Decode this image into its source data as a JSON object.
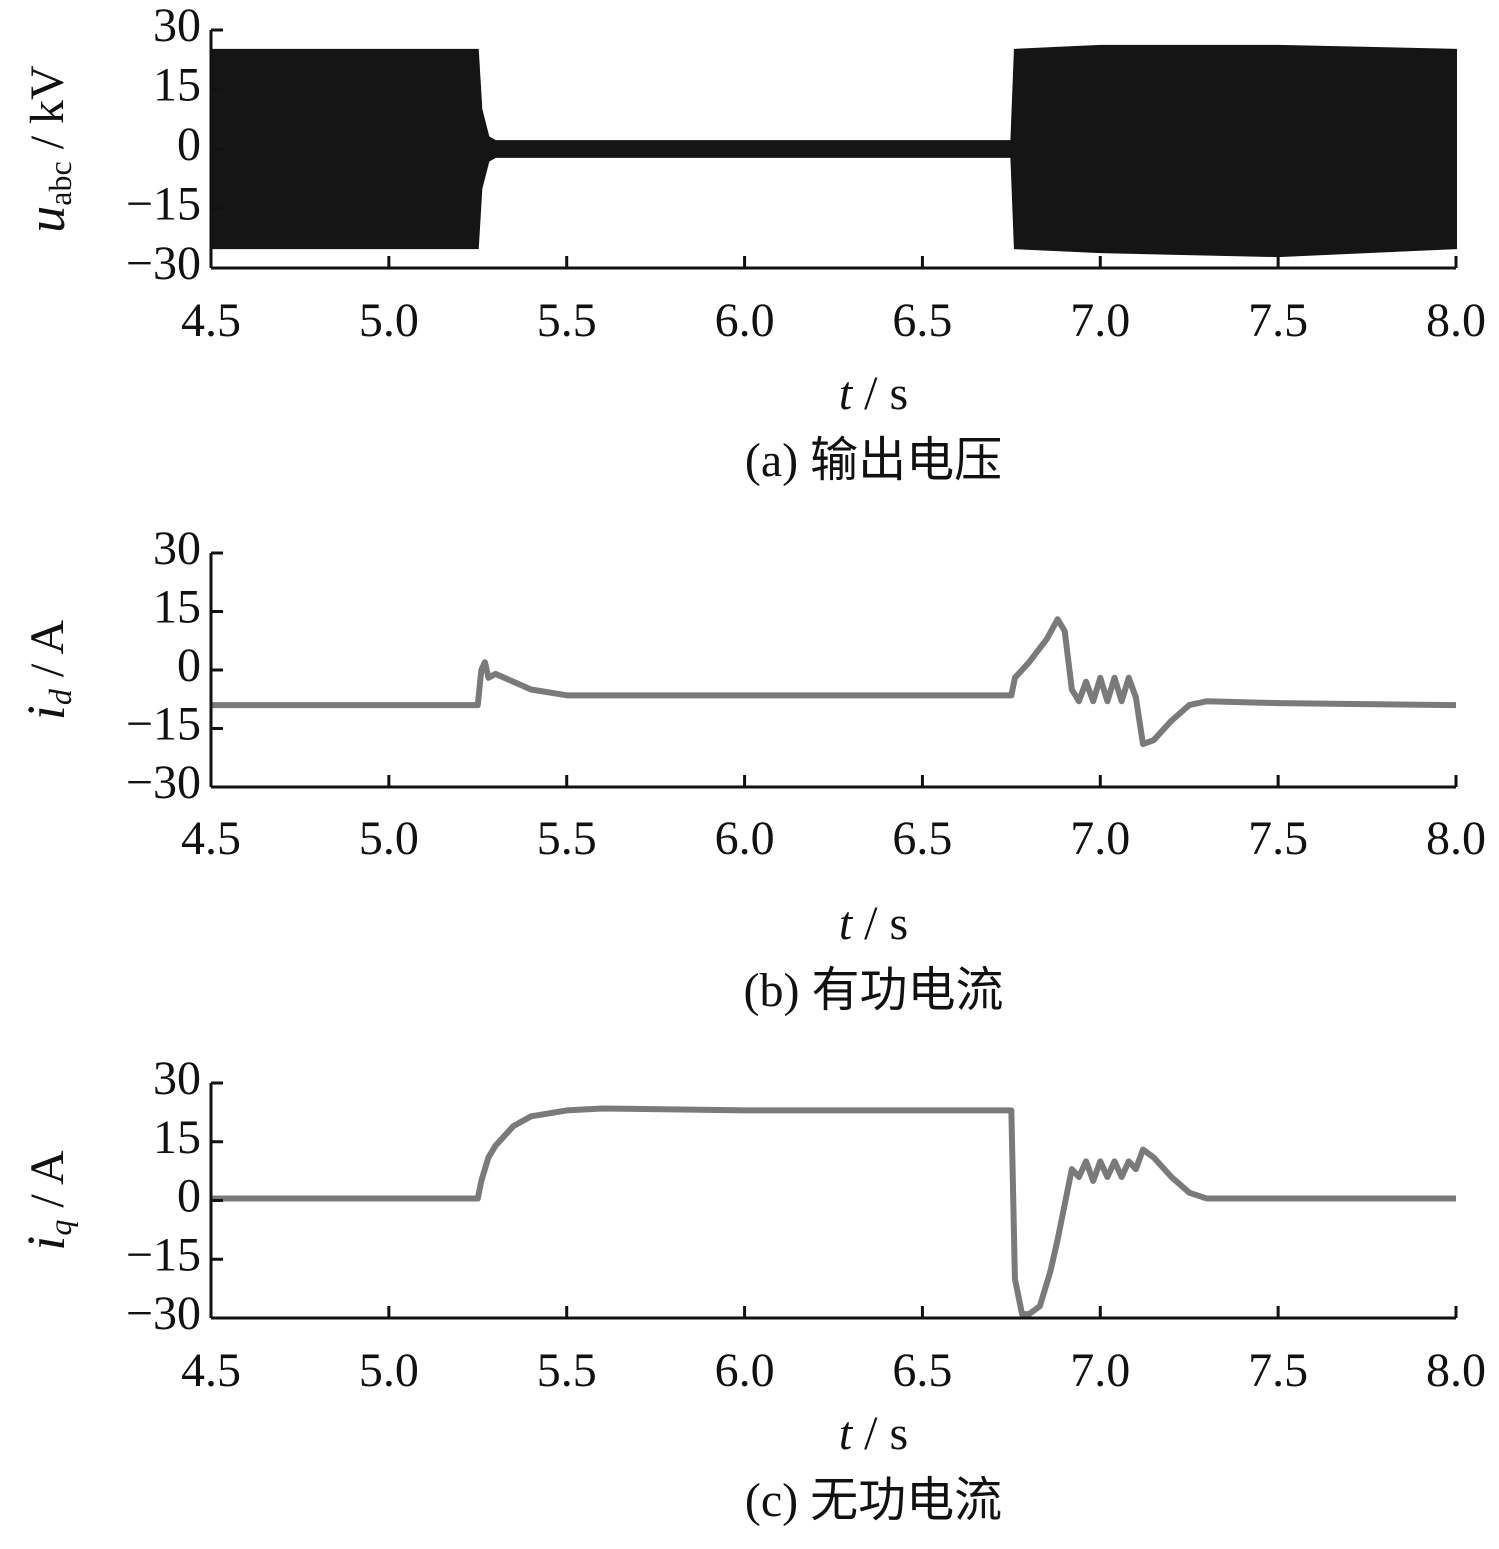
{
  "chart_data": [
    {
      "type": "band",
      "caption": "(a)  输出电压",
      "ylabel": [
        "u",
        "abc",
        " / kV"
      ],
      "xlabel": [
        "t",
        " / s"
      ],
      "x": [
        4.5,
        5.0,
        5.25,
        5.26,
        5.28,
        5.3,
        6.0,
        6.75,
        6.76,
        7.0,
        7.5,
        8.0
      ],
      "series": [
        {
          "color": "#151515",
          "values": [
            25,
            25,
            25,
            10,
            3,
            2,
            2,
            2,
            25,
            26,
            26,
            25
          ]
        },
        {
          "color": "#151515",
          "values": [
            -25,
            -25,
            -25,
            -10,
            -3,
            -2,
            -2,
            -2,
            -25,
            -26,
            -27,
            -25
          ]
        }
      ],
      "xlim": [
        4.5,
        8.0
      ],
      "ylim": [
        -30,
        30
      ],
      "xticks": [
        4.5,
        {
          "value": 5,
          "label": "5.0"
        },
        5.5,
        {
          "value": 6,
          "label": "6.0"
        },
        6.5,
        {
          "value": 7,
          "label": "7.0"
        },
        7.5,
        {
          "value": 8,
          "label": "8.0"
        }
      ],
      "yticks": [
        30,
        15,
        0,
        {
          "value": -15,
          "label": "−15"
        },
        {
          "value": -30,
          "label": "−30"
        }
      ]
    },
    {
      "type": "line",
      "caption": "(b)  有功电流",
      "ylabel": [
        "i",
        "d",
        " / A"
      ],
      "xlabel": [
        "t",
        " / s"
      ],
      "x": [
        4.5,
        5.0,
        5.25,
        5.26,
        5.27,
        5.28,
        5.3,
        5.35,
        5.4,
        5.5,
        6.0,
        6.5,
        6.75,
        6.76,
        6.78,
        6.8,
        6.85,
        6.88,
        6.9,
        6.92,
        6.94,
        6.96,
        6.98,
        7.0,
        7.02,
        7.04,
        7.06,
        7.08,
        7.1,
        7.12,
        7.15,
        7.2,
        7.25,
        7.3,
        7.5,
        8.0
      ],
      "series": [
        {
          "color": "#7a7a7a",
          "values": [
            -9,
            -9,
            -9,
            0,
            2,
            -2,
            -1,
            -3,
            -5,
            -6.5,
            -6.5,
            -6.5,
            -6.5,
            -2,
            0,
            2,
            8,
            13,
            10,
            -5,
            -8,
            -3,
            -8,
            -2,
            -8,
            -2,
            -8,
            -2,
            -7,
            -19,
            -18,
            -13,
            -9,
            -8,
            -8.5,
            -9
          ]
        }
      ],
      "xlim": [
        4.5,
        8.0
      ],
      "ylim": [
        -30,
        30
      ],
      "xticks": [
        4.5,
        {
          "value": 5,
          "label": "5.0"
        },
        5.5,
        {
          "value": 6,
          "label": "6.0"
        },
        6.5,
        {
          "value": 7,
          "label": "7.0"
        },
        7.5,
        {
          "value": 8,
          "label": "8.0"
        }
      ],
      "yticks": [
        30,
        15,
        0,
        {
          "value": -15,
          "label": "−15"
        },
        {
          "value": -30,
          "label": "−30"
        }
      ]
    },
    {
      "type": "line",
      "caption": "(c)  无功电流",
      "ylabel": [
        "i",
        "q",
        " / A"
      ],
      "xlabel": [
        "t",
        " / s"
      ],
      "x": [
        4.5,
        5.25,
        5.26,
        5.28,
        5.3,
        5.35,
        5.4,
        5.5,
        5.6,
        6.0,
        6.5,
        6.75,
        6.76,
        6.78,
        6.8,
        6.83,
        6.86,
        6.88,
        6.92,
        6.94,
        6.96,
        6.98,
        7.0,
        7.02,
        7.04,
        7.06,
        7.08,
        7.1,
        7.12,
        7.15,
        7.2,
        7.25,
        7.3,
        8.0
      ],
      "series": [
        {
          "color": "#7a7a7a",
          "values": [
            0.5,
            0.5,
            5,
            11,
            14,
            19,
            21.5,
            23,
            23.5,
            23,
            23,
            23,
            -20,
            -29,
            -29,
            -27,
            -18,
            -10,
            8,
            6,
            10,
            5,
            10,
            6,
            10,
            6,
            10,
            8,
            13,
            11,
            6,
            2,
            0.5,
            0.5
          ]
        }
      ],
      "xlim": [
        4.5,
        8.0
      ],
      "ylim": [
        -30,
        30
      ],
      "xticks": [
        4.5,
        {
          "value": 5,
          "label": "5.0"
        },
        5.5,
        {
          "value": 6,
          "label": "6.0"
        },
        6.5,
        {
          "value": 7,
          "label": "7.0"
        },
        7.5,
        {
          "value": 8,
          "label": "8.0"
        }
      ],
      "yticks": [
        30,
        15,
        0,
        {
          "value": -15,
          "label": "−15"
        },
        {
          "value": -30,
          "label": "−30"
        }
      ]
    }
  ]
}
